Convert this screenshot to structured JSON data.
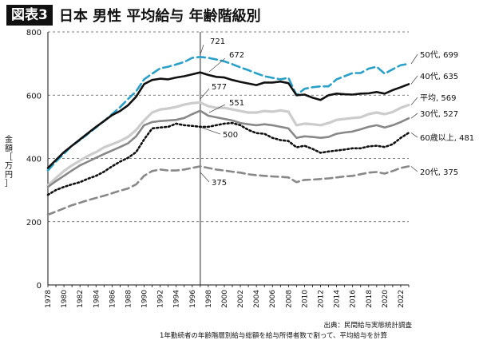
{
  "header": {
    "figure_label": "図表3",
    "title": "日本 男性 平均給与 年齢階級別"
  },
  "axis": {
    "ylabel_chars": [
      "金",
      "額",
      "［",
      "万",
      "円",
      "］"
    ]
  },
  "footer": {
    "source": "出典：民間給与実態統計調査",
    "note": "1年勤続者の年齢階層別給与総額を給与所得者数で割って、平均給与を計算"
  },
  "chart_data": {
    "type": "line",
    "ylim": [
      0,
      800
    ],
    "xlim": [
      1978,
      2023
    ],
    "yticks": [
      0,
      200,
      400,
      600,
      800
    ],
    "xticks": [
      1978,
      1980,
      1982,
      1984,
      1986,
      1988,
      1990,
      1992,
      1994,
      1996,
      1998,
      2000,
      2002,
      2004,
      2006,
      2008,
      2010,
      2012,
      2014,
      2016,
      2018,
      2020,
      2022
    ],
    "grid": "horizontal dashed",
    "reference_year": 1997,
    "x": [
      1978,
      1979,
      1980,
      1981,
      1982,
      1983,
      1984,
      1985,
      1986,
      1987,
      1988,
      1989,
      1990,
      1991,
      1992,
      1993,
      1994,
      1995,
      1996,
      1997,
      1998,
      1999,
      2000,
      2001,
      2002,
      2003,
      2004,
      2005,
      2006,
      2007,
      2008,
      2009,
      2010,
      2011,
      2012,
      2013,
      2014,
      2015,
      2016,
      2017,
      2018,
      2019,
      2020,
      2021,
      2022,
      2023
    ],
    "series": [
      {
        "name": "50代",
        "end_label": "50代, 699",
        "color": "#2aa0c8",
        "dash": "10,5",
        "width": 2.6,
        "values": [
          362,
          390,
          415,
          440,
          458,
          478,
          498,
          518,
          540,
          562,
          588,
          612,
          650,
          668,
          685,
          690,
          697,
          705,
          718,
          721,
          718,
          713,
          707,
          698,
          688,
          679,
          669,
          660,
          655,
          650,
          655,
          600,
          620,
          625,
          628,
          628,
          650,
          660,
          670,
          670,
          684,
          690,
          668,
          682,
          695,
          699
        ],
        "annotation": {
          "year": 1997,
          "text": "721"
        }
      },
      {
        "name": "40代",
        "end_label": "40代, 635",
        "color": "#111111",
        "dash": "",
        "width": 2.6,
        "values": [
          370,
          395,
          420,
          440,
          460,
          480,
          500,
          518,
          537,
          550,
          568,
          595,
          635,
          648,
          652,
          650,
          656,
          660,
          666,
          672,
          664,
          658,
          656,
          648,
          642,
          637,
          632,
          640,
          640,
          643,
          638,
          600,
          602,
          592,
          585,
          600,
          605,
          603,
          602,
          605,
          606,
          610,
          605,
          616,
          625,
          635
        ],
        "annotation": {
          "year": 1998,
          "text": "672"
        }
      },
      {
        "name": "平均",
        "end_label": "平均, 569",
        "color": "#cccccc",
        "dash": "",
        "width": 3.2,
        "values": [
          315,
          338,
          360,
          378,
          393,
          408,
          420,
          435,
          445,
          455,
          468,
          490,
          520,
          545,
          555,
          558,
          563,
          570,
          575,
          577,
          565,
          560,
          560,
          555,
          550,
          545,
          545,
          550,
          548,
          552,
          548,
          505,
          510,
          508,
          505,
          512,
          522,
          525,
          528,
          530,
          540,
          545,
          540,
          547,
          560,
          569
        ],
        "annotation": {
          "year": 1997,
          "text": "577"
        }
      },
      {
        "name": "30代",
        "end_label": "30代, 527",
        "color": "#888888",
        "dash": "",
        "width": 2.6,
        "values": [
          310,
          328,
          345,
          362,
          378,
          390,
          402,
          414,
          425,
          436,
          448,
          470,
          505,
          515,
          518,
          520,
          522,
          528,
          540,
          551,
          535,
          530,
          525,
          520,
          512,
          508,
          505,
          508,
          505,
          500,
          495,
          465,
          470,
          468,
          465,
          468,
          478,
          482,
          485,
          492,
          500,
          505,
          498,
          505,
          515,
          527
        ],
        "annotation": {
          "year": 1998,
          "text": "551"
        }
      },
      {
        "name": "60歳以上",
        "end_label": "60歳以上, 481",
        "color": "#111111",
        "dash": "2,3",
        "width": 2.6,
        "values": [
          285,
          300,
          310,
          318,
          325,
          336,
          345,
          358,
          375,
          390,
          402,
          420,
          460,
          495,
          498,
          500,
          510,
          505,
          503,
          500,
          500,
          505,
          510,
          512,
          505,
          490,
          480,
          478,
          465,
          458,
          455,
          435,
          440,
          430,
          418,
          422,
          425,
          428,
          432,
          432,
          438,
          440,
          436,
          445,
          465,
          481
        ],
        "annotation": {
          "year": 1998,
          "text": "500"
        }
      },
      {
        "name": "20代",
        "end_label": "20代, 375",
        "color": "#888888",
        "dash": "9,5",
        "width": 2.6,
        "values": [
          222,
          232,
          242,
          252,
          260,
          268,
          275,
          282,
          290,
          298,
          305,
          318,
          345,
          360,
          365,
          362,
          362,
          365,
          370,
          375,
          370,
          365,
          362,
          358,
          355,
          350,
          347,
          345,
          343,
          342,
          340,
          325,
          332,
          333,
          335,
          337,
          340,
          343,
          345,
          350,
          355,
          357,
          352,
          360,
          370,
          375
        ],
        "annotation": {
          "year": 1997,
          "text": "375"
        }
      }
    ]
  }
}
